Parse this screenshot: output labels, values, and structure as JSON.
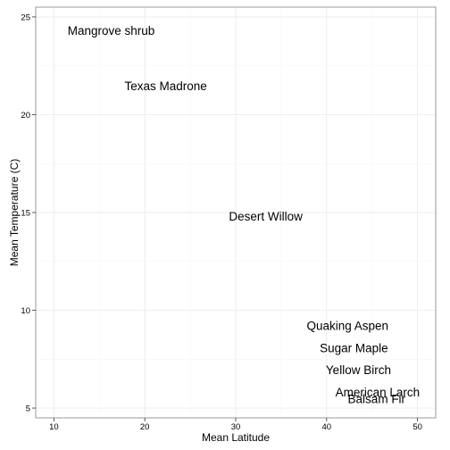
{
  "chart_data": {
    "type": "scatter",
    "xlabel": "Mean Latitude",
    "ylabel": "Mean Temperature (C)",
    "xlim": [
      8,
      52
    ],
    "ylim": [
      4.5,
      25.5
    ],
    "x_ticks": [
      10,
      20,
      30,
      40,
      50
    ],
    "y_ticks": [
      5,
      10,
      15,
      20,
      25
    ],
    "grid": true,
    "points": [
      {
        "label": "Mangrove shrub",
        "x": 16.3,
        "y": 24.3
      },
      {
        "label": "Texas Madrone",
        "x": 22.3,
        "y": 21.45
      },
      {
        "label": "Desert Willow",
        "x": 33.3,
        "y": 14.8
      },
      {
        "label": "Quaking Aspen",
        "x": 42.3,
        "y": 9.2
      },
      {
        "label": "Sugar Maple",
        "x": 43.0,
        "y": 8.05
      },
      {
        "label": "Yellow Birch",
        "x": 43.5,
        "y": 6.95
      },
      {
        "label": "American Larch",
        "x": 45.6,
        "y": 5.8
      },
      {
        "label": "Balsam Fir",
        "x": 45.5,
        "y": 5.45
      }
    ]
  }
}
